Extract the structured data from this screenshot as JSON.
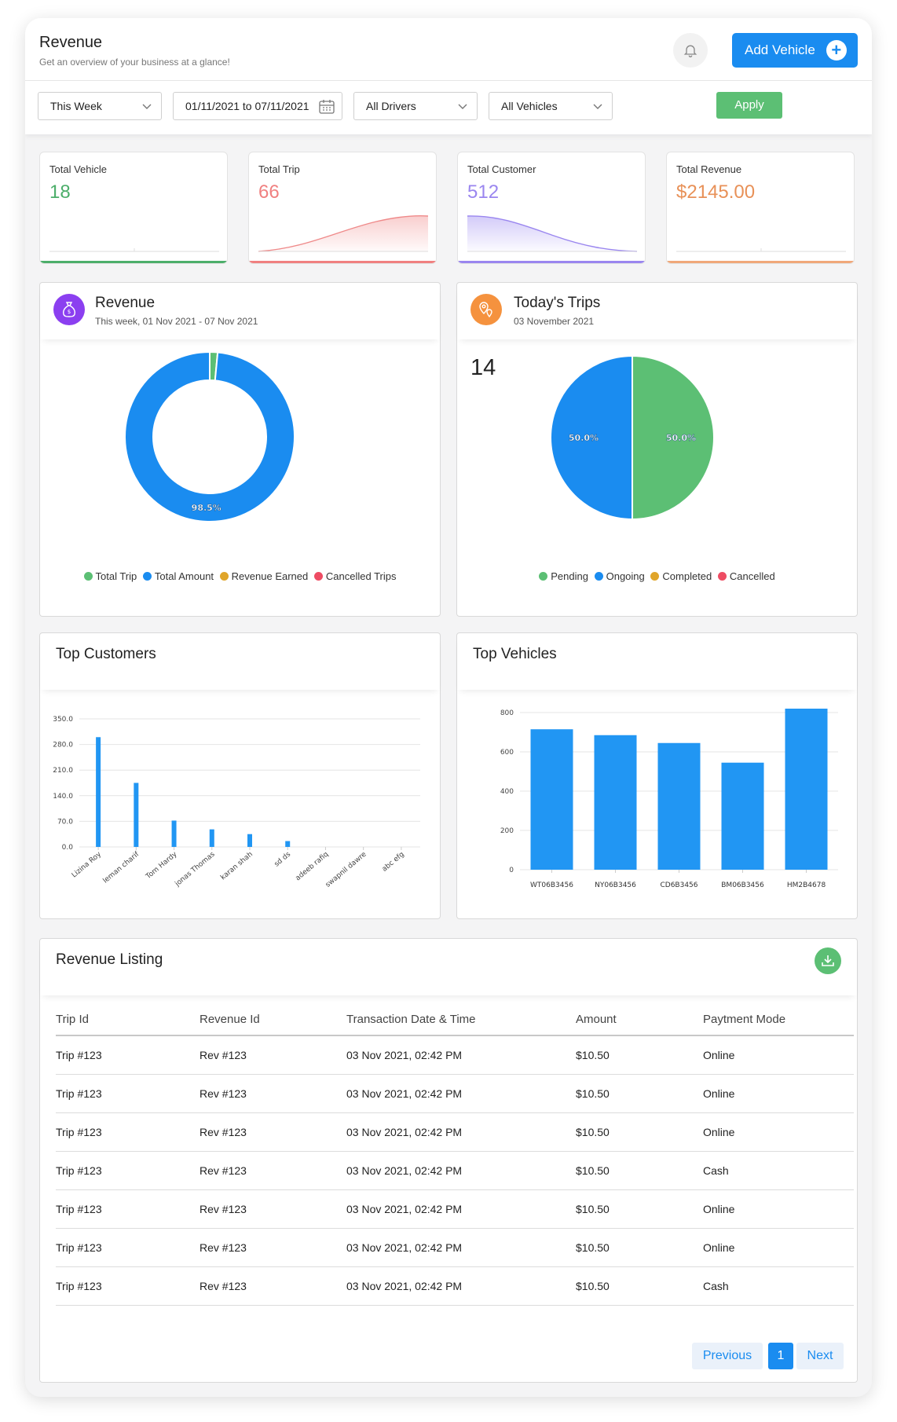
{
  "header": {
    "title": "Revenue",
    "subtitle": "Get an overview of your business at a glance!",
    "add_vehicle_label": "Add Vehicle"
  },
  "filters": {
    "period": "This Week",
    "date_range": "01/11/2021 to 07/11/2021",
    "drivers": "All Drivers",
    "vehicles": "All Vehicles",
    "apply_label": "Apply"
  },
  "stats": [
    {
      "label": "Total Vehicle",
      "value": "18",
      "color": "#4cae6a"
    },
    {
      "label": "Total Trip",
      "value": "66",
      "color": "#f08080"
    },
    {
      "label": "Total Customer",
      "value": "512",
      "color": "#9a86ef"
    },
    {
      "label": "Total Revenue",
      "value": "$2145.00",
      "color": "#e89158"
    }
  ],
  "revenue_card": {
    "title": "Revenue",
    "subtitle": "This week, 01 Nov 2021 - 07 Nov 2021"
  },
  "trips_card": {
    "title": "Today's Trips",
    "subtitle": "03 November 2021",
    "count": "14"
  },
  "customers_card": {
    "title": "Top Customers"
  },
  "vehicles_card": {
    "title": "Top Vehicles"
  },
  "listing": {
    "title": "Revenue Listing",
    "columns": [
      "Trip Id",
      "Revenue Id",
      "Transaction Date & Time",
      "Amount",
      "Paytment Mode"
    ],
    "rows": [
      [
        "Trip #123",
        "Rev #123",
        "03 Nov 2021, 02:42 PM",
        "$10.50",
        "Online"
      ],
      [
        "Trip #123",
        "Rev #123",
        "03 Nov 2021, 02:42 PM",
        "$10.50",
        "Online"
      ],
      [
        "Trip #123",
        "Rev #123",
        "03 Nov 2021, 02:42 PM",
        "$10.50",
        "Online"
      ],
      [
        "Trip #123",
        "Rev #123",
        "03 Nov 2021, 02:42 PM",
        "$10.50",
        "Cash"
      ],
      [
        "Trip #123",
        "Rev #123",
        "03 Nov 2021, 02:42 PM",
        "$10.50",
        "Online"
      ],
      [
        "Trip #123",
        "Rev #123",
        "03 Nov 2021, 02:42 PM",
        "$10.50",
        "Online"
      ],
      [
        "Trip #123",
        "Rev #123",
        "03 Nov 2021, 02:42 PM",
        "$10.50",
        "Cash"
      ]
    ],
    "pagination": {
      "previous": "Previous",
      "current": "1",
      "next": "Next"
    }
  },
  "chart_data": [
    {
      "type": "pie",
      "variant": "donut",
      "labels": [
        "Total Trip",
        "Total Amount",
        "Revenue Earned",
        "Cancelled Trips"
      ],
      "values": [
        1.5,
        98.5,
        0,
        0
      ],
      "value_unit": "%",
      "colors": [
        "#5cbf74",
        "#1a8cf0",
        "#e0a52a",
        "#ee4c63"
      ],
      "data_labels": [
        "",
        "98.5%",
        "",
        ""
      ],
      "legend": "bottom"
    },
    {
      "type": "pie",
      "labels": [
        "Pending",
        "Ongoing",
        "Completed",
        "Cancelled"
      ],
      "values": [
        50.0,
        50.0,
        0,
        0
      ],
      "value_unit": "%",
      "colors": [
        "#5cbf74",
        "#1a8cf0",
        "#e0a52a",
        "#ee4c63"
      ],
      "data_labels": [
        "50.0%",
        "50.0%",
        "",
        ""
      ],
      "legend": "bottom"
    },
    {
      "type": "bar",
      "categories": [
        "Lizina Roy",
        "leman charif",
        "Tom Hardy",
        "jonas Thomas",
        "karan shah",
        "sd ds",
        "adeeb rafiq",
        "swapnil dawre",
        "abc efg"
      ],
      "values": [
        300,
        175,
        72,
        48,
        35,
        16,
        0,
        0,
        0
      ],
      "ylim": [
        0,
        350
      ],
      "yticks": [
        "0.0",
        "70.0",
        "140.0",
        "210.0",
        "280.0",
        "350.0"
      ],
      "color": "#2196f3",
      "grid": true
    },
    {
      "type": "bar",
      "categories": [
        "WT06B3456",
        "NY06B3456",
        "CD6B3456",
        "BM06B3456",
        "HM2B4678"
      ],
      "values": [
        715,
        685,
        645,
        545,
        820
      ],
      "ylim": [
        0,
        800
      ],
      "yticks": [
        "0",
        "200",
        "400",
        "600",
        "800"
      ],
      "color": "#2196f3",
      "grid": true
    }
  ]
}
